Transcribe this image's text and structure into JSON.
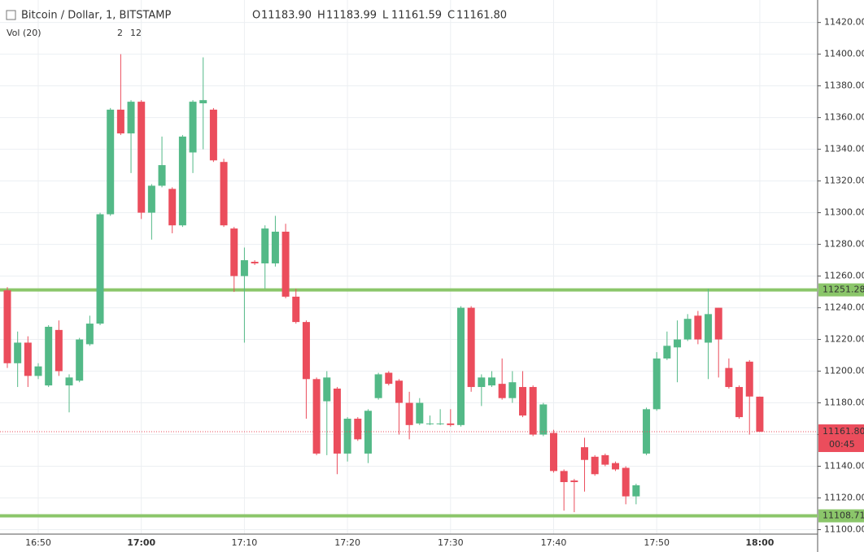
{
  "chart_data": {
    "type": "candlestick",
    "legend": {
      "symbol": "Bitcoin / Dollar, 1, BITSTAMP",
      "o": "O",
      "open": "11183.90",
      "h": "H",
      "high": "11183.99",
      "l": "L",
      "low": "11161.59",
      "c": "C",
      "close": "11161.80",
      "volume": "Vol (20)",
      "vol_down": "2",
      "vol_up": "12"
    },
    "up_color": "#53b987",
    "down_color": "#eb4d5c",
    "categories": [
      null,
      null,
      null,
      "16:50",
      null,
      null,
      null,
      null,
      null,
      null,
      null,
      null,
      null,
      "17:00",
      null,
      null,
      null,
      null,
      null,
      null,
      null,
      null,
      null,
      "17:10",
      null,
      null,
      null,
      null,
      null,
      null,
      null,
      null,
      null,
      "17:20",
      null,
      null,
      null,
      null,
      null,
      null,
      null,
      null,
      null,
      "17:30",
      null,
      null,
      null,
      null,
      null,
      null,
      null,
      null,
      null,
      "17:40",
      null,
      null,
      null,
      null,
      null,
      null,
      null,
      null,
      null,
      "17:50",
      null,
      null,
      null,
      null,
      null,
      null,
      null,
      null,
      null,
      "18:00"
    ],
    "open": [
      11251,
      11205,
      11218,
      11197,
      11191,
      11226,
      11191,
      11194,
      11217,
      11230,
      11299,
      11365,
      11350,
      11370,
      11300,
      11317,
      11315,
      11292,
      11338,
      11369,
      11365,
      11332,
      11290,
      11260,
      11269,
      11268,
      11268,
      11288,
      11247,
      11231,
      11195,
      11181,
      11189,
      11148,
      11170,
      11148,
      11183,
      11199,
      11194,
      11180,
      11167,
      11167,
      11167,
      11167,
      11166,
      11240,
      11190,
      11191,
      11192,
      11183,
      11190,
      11190,
      11160,
      11161,
      11137,
      11131,
      11152,
      11146,
      11147,
      11142,
      11139,
      11121,
      11148,
      11176,
      11208,
      11215,
      11220,
      11235,
      11218,
      11240,
      11202,
      11190,
      11206,
      11183.9
    ],
    "high": [
      11253,
      11225,
      11222,
      11205,
      11229,
      11232,
      11198,
      11221,
      11235,
      11300,
      11366,
      11400,
      11371,
      11371,
      11318,
      11348,
      11316,
      11349,
      11371,
      11398,
      11366,
      11334,
      11291,
      11278,
      11270,
      11292,
      11298,
      11293,
      11252,
      11232,
      11196,
      11200,
      11190,
      11171,
      11171,
      11176,
      11199,
      11200,
      11195,
      11187,
      11183,
      11172,
      11176,
      11176,
      11241,
      11241,
      11198,
      11200,
      11208,
      11200,
      11200,
      11191,
      11180,
      11163,
      11138,
      11132,
      11158,
      11147,
      11148,
      11143,
      11140,
      11129,
      11177,
      11212,
      11225,
      11232,
      11236,
      11238,
      11252,
      11240,
      11208,
      11191,
      11207,
      11183.99
    ],
    "low": [
      11202,
      11190,
      11190,
      11195,
      11190,
      11197,
      11174,
      11193,
      11216,
      11229,
      11298,
      11349,
      11325,
      11296,
      11283,
      11316,
      11287,
      11291,
      11325,
      11340,
      11332,
      11291,
      11250,
      11218,
      11267,
      11252,
      11266,
      11246,
      11230,
      11170,
      11147,
      11147,
      11135,
      11143,
      11156,
      11142,
      11182,
      11191,
      11160,
      11157,
      11166,
      11166,
      11166,
      11165,
      11165,
      11187,
      11178,
      11190,
      11182,
      11180,
      11171,
      11159,
      11159,
      11136,
      11112,
      11111,
      11124,
      11134,
      11140,
      11137,
      11116,
      11116,
      11147,
      11175,
      11207,
      11193,
      11219,
      11217,
      11195,
      11196,
      11189,
      11170,
      11160,
      11161.59
    ],
    "close": [
      11205,
      11218,
      11197,
      11203,
      11228,
      11200,
      11196,
      11220,
      11230,
      11299,
      11365,
      11350,
      11370,
      11300,
      11317,
      11330,
      11292,
      11348,
      11370,
      11371,
      11333,
      11292,
      11260,
      11270,
      11268,
      11290,
      11288,
      11247,
      11231,
      11195,
      11148,
      11196,
      11148,
      11170,
      11157,
      11175,
      11198,
      11192,
      11180,
      11166,
      11180,
      11167,
      11167,
      11166,
      11240,
      11190,
      11196,
      11196,
      11183,
      11193,
      11172,
      11160,
      11179,
      11137,
      11130,
      11130,
      11144,
      11135,
      11141,
      11138,
      11121,
      11128,
      11176,
      11208,
      11216,
      11220,
      11233,
      11220,
      11236,
      11220,
      11190,
      11171,
      11184,
      11161.8
    ],
    "ylim": [
      11090,
      11427
    ],
    "yticks": [
      {
        "value": 11100,
        "label": "11100.00"
      },
      {
        "value": 11120,
        "label": "11120.00"
      },
      {
        "value": 11140,
        "label": "11140.00"
      },
      {
        "value": 11160,
        "label": "11160.00"
      },
      {
        "value": 11180,
        "label": "11180.00"
      },
      {
        "value": 11200,
        "label": "11200.00"
      },
      {
        "value": 11220,
        "label": "11220.00"
      },
      {
        "value": 11240,
        "label": "11240.00"
      },
      {
        "value": 11260,
        "label": "11260.00"
      },
      {
        "value": 11280,
        "label": "11280.00"
      },
      {
        "value": 11300,
        "label": "11300.00"
      },
      {
        "value": 11320,
        "label": "11320.00"
      },
      {
        "value": 11340,
        "label": "11340.00"
      },
      {
        "value": 11360,
        "label": "11360.00"
      },
      {
        "value": 11380,
        "label": "11380.00"
      },
      {
        "value": 11400,
        "label": "11400.00"
      },
      {
        "value": 11420,
        "label": "11420.00"
      }
    ],
    "hlines": [
      {
        "value": 11251.28,
        "color": "#8bc66a"
      },
      {
        "value": 11108.71,
        "color": "#8bc66a"
      }
    ],
    "last_price": {
      "value": 11161.8,
      "label": "11161.80",
      "countdown": "00:45",
      "color": "#eb4d5c"
    },
    "grid": true
  }
}
